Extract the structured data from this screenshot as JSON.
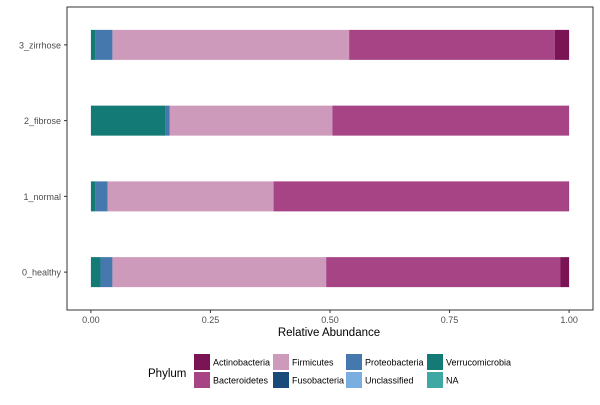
{
  "chart_data": {
    "type": "bar",
    "orientation": "horizontal",
    "stacked": true,
    "title": "",
    "xlabel": "Relative Abundance",
    "ylabel": "",
    "xlim": [
      -0.05,
      1.05
    ],
    "x_ticks": [
      0.0,
      0.25,
      0.5,
      0.75,
      1.0
    ],
    "x_tick_labels": [
      "0.00",
      "0.25",
      "0.50",
      "0.75",
      "1.00"
    ],
    "grid": false,
    "legend": {
      "title": "Phylum",
      "placement": "bottom",
      "entries": [
        "Actinobacteria",
        "Bacteroidetes",
        "Firmicutes",
        "Fusobacteria",
        "Proteobacteria",
        "Unclassified",
        "Verrucomicrobia",
        "NA"
      ]
    },
    "categories": [
      "0_healthy",
      "1_normal",
      "2_fibrose",
      "3_zirrhose"
    ],
    "series": [
      {
        "name": "Verrucomicrobia",
        "color": "#137a75",
        "values": [
          0.02,
          0.01,
          0.155,
          0.01
        ]
      },
      {
        "name": "Fusobacteria",
        "color": "#1a4a7a",
        "values": [
          0.0,
          0.0,
          0.0,
          0.0
        ]
      },
      {
        "name": "Proteobacteria",
        "color": "#4579ad",
        "values": [
          0.025,
          0.025,
          0.01,
          0.035
        ]
      },
      {
        "name": "Firmicutes",
        "color": "#cd9abb",
        "values": [
          0.447,
          0.347,
          0.34,
          0.495
        ]
      },
      {
        "name": "Bacteroidetes",
        "color": "#a74486",
        "values": [
          0.49,
          0.617,
          0.495,
          0.43
        ]
      },
      {
        "name": "Actinobacteria",
        "color": "#7a1454",
        "values": [
          0.018,
          0.001,
          0.0,
          0.03
        ]
      }
    ],
    "legend_colors": {
      "Actinobacteria": "#7a1454",
      "Bacteroidetes": "#a74486",
      "Firmicutes": "#cd9abb",
      "Fusobacteria": "#1a4a7a",
      "Proteobacteria": "#4579ad",
      "Unclassified": "#7aaee0",
      "Verrucomicrobia": "#137a75",
      "NA": "#3fa8a3"
    }
  }
}
